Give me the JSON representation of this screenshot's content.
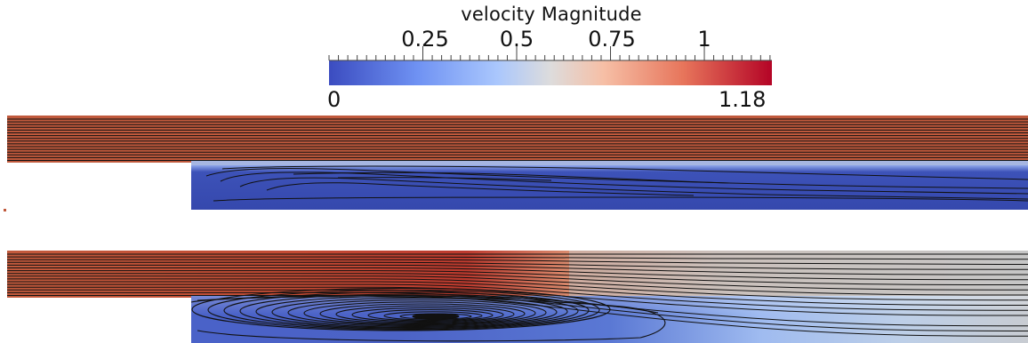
{
  "colorbar": {
    "title": "velocity Magnitude",
    "tick_labels": [
      "0.25",
      "0.5",
      "0.75",
      "1"
    ],
    "tick_values": [
      0.25,
      0.5,
      0.75,
      1.0
    ],
    "min_label": "0",
    "max_label": "1.18",
    "range": [
      0,
      1.18
    ],
    "colors": {
      "low": "#3b4cc0",
      "mid": "#dddddd",
      "high": "#b40426"
    }
  },
  "panels": [
    {
      "name": "upper-flow-panel"
    },
    {
      "name": "lower-flow-panel"
    }
  ],
  "colors": {
    "jet": "#c0583b",
    "recirculation": "#3a4db0",
    "far_field": "#c4c4c4",
    "streamline": "#111111"
  }
}
